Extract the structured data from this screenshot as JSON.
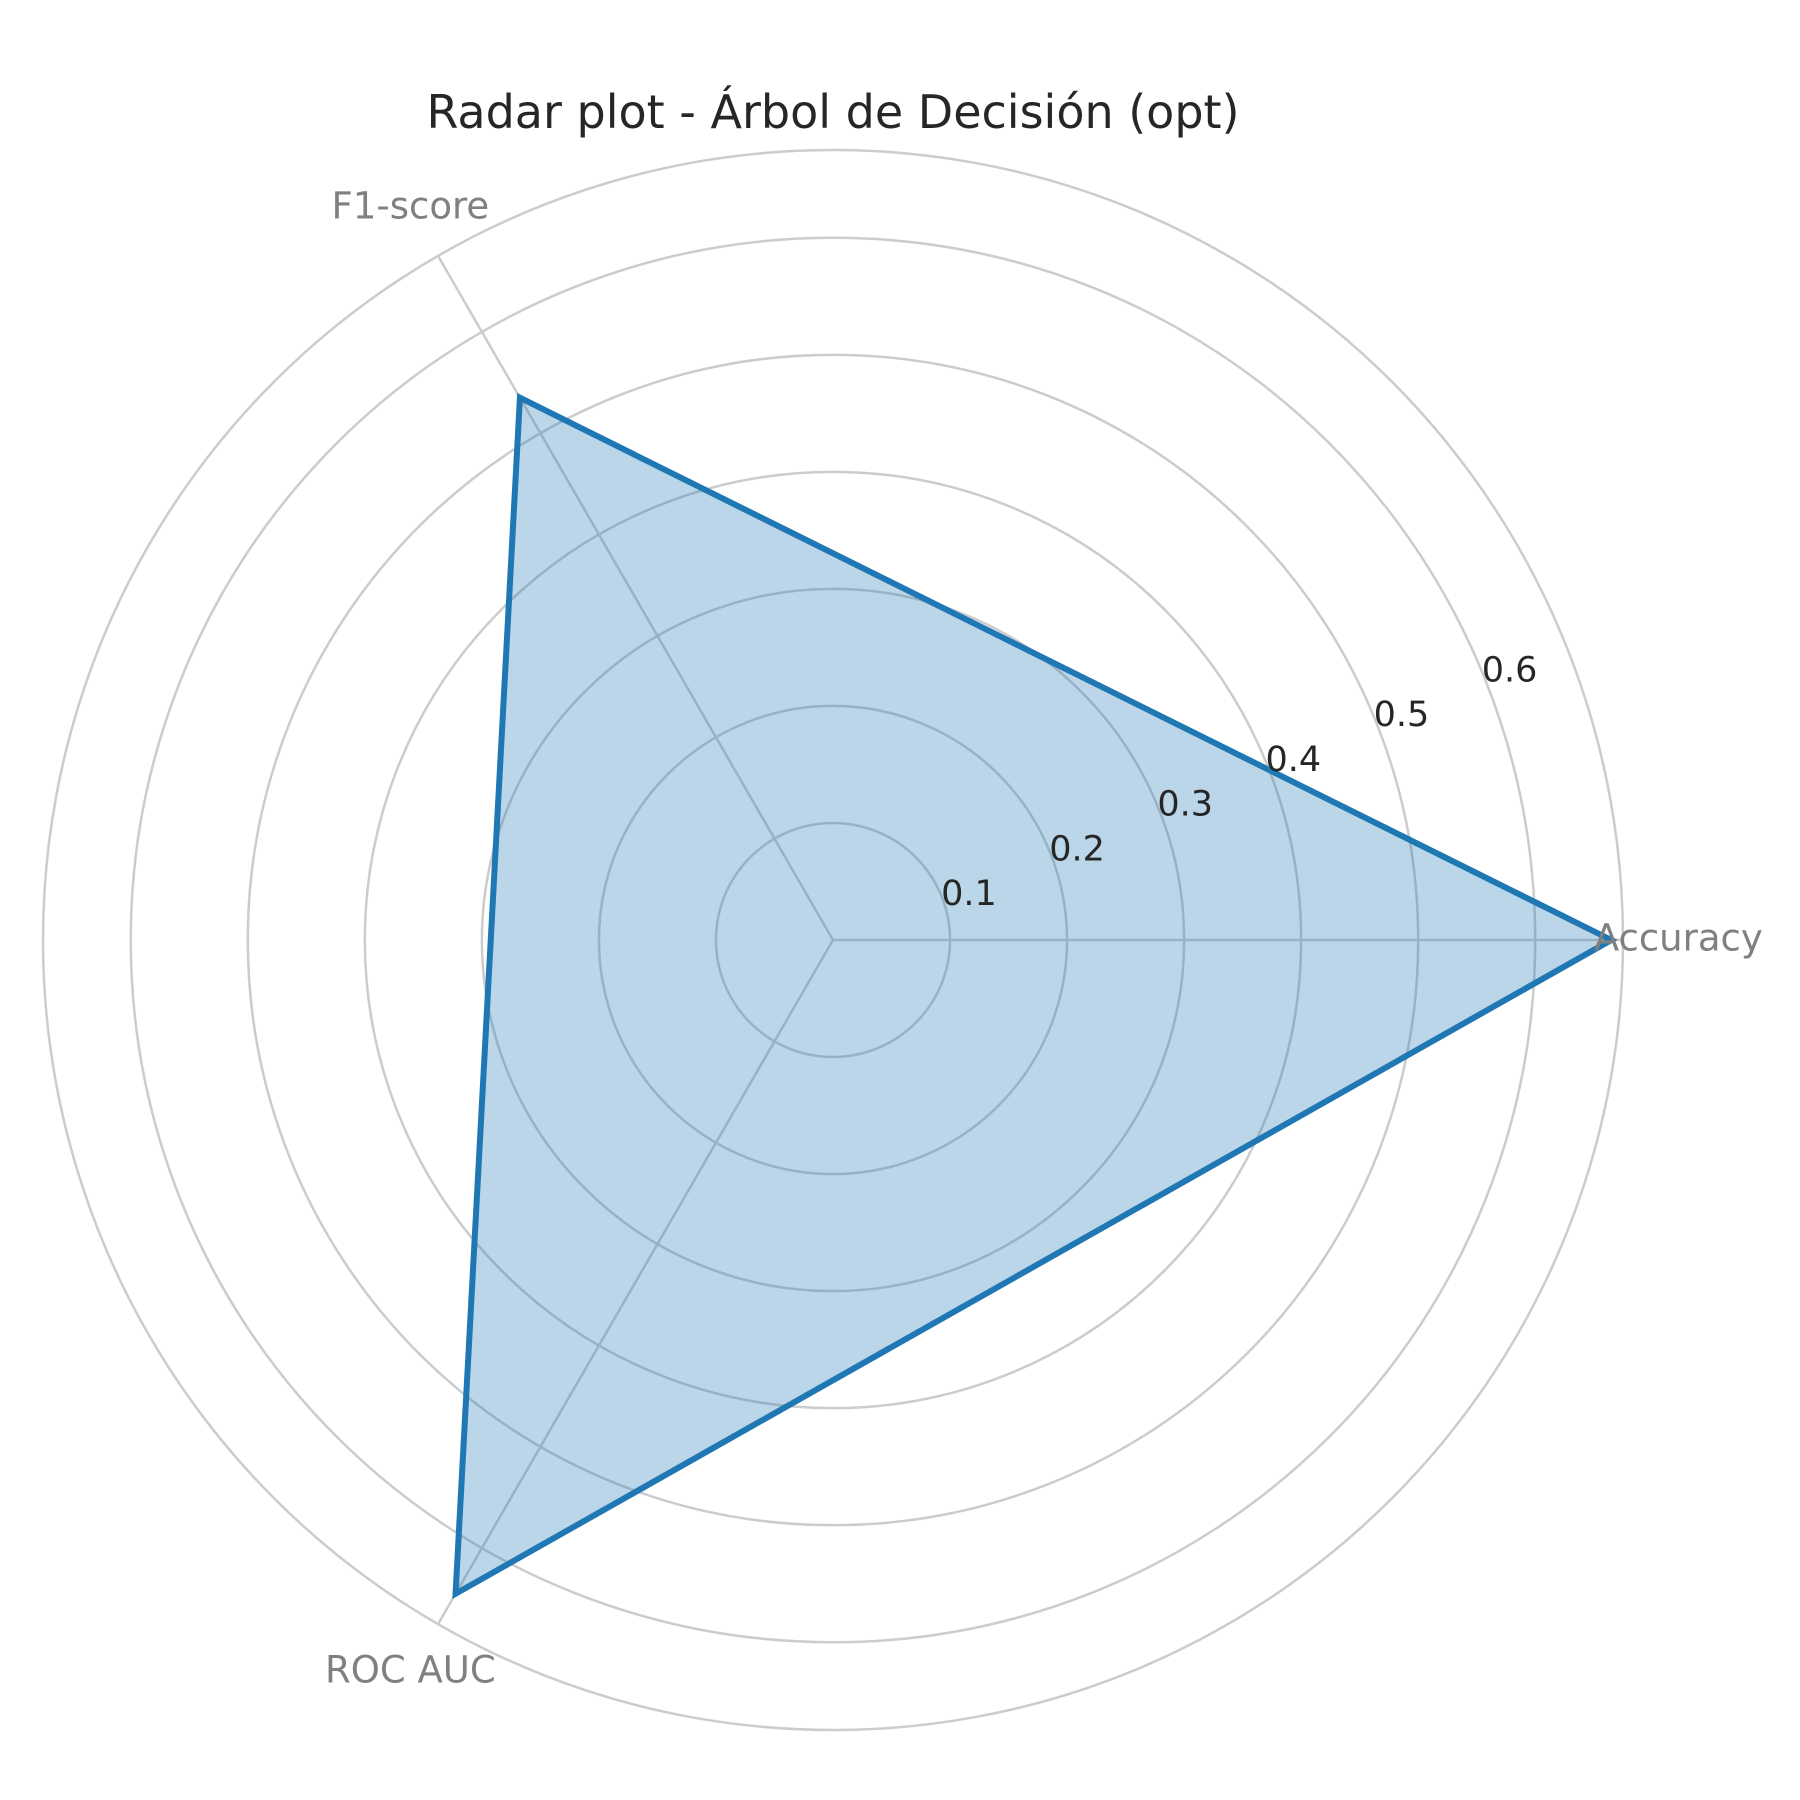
{
  "chart_data": {
    "type": "radar",
    "title": "Radar plot - Árbol de Decisión (opt)",
    "categories": [
      "Accuracy",
      "F1-score",
      "ROC AUC"
    ],
    "series": [
      {
        "values": [
          0.665,
          0.535,
          0.645
        ]
      }
    ],
    "rlim": [
      0,
      0.675
    ],
    "radial_ticks": [
      0.1,
      0.2,
      0.3,
      0.4,
      0.5,
      0.6
    ],
    "radial_tick_labels": [
      "0.1",
      "0.2",
      "0.3",
      "0.4",
      "0.5",
      "0.6"
    ],
    "grid": true,
    "legend": "none"
  },
  "colors": {
    "series_line": "#1f77b4",
    "series_fill": "#1f77b4",
    "grid": "#cccccc",
    "axis_label": "#808080",
    "tick_label": "#262626",
    "title": "#262626"
  }
}
